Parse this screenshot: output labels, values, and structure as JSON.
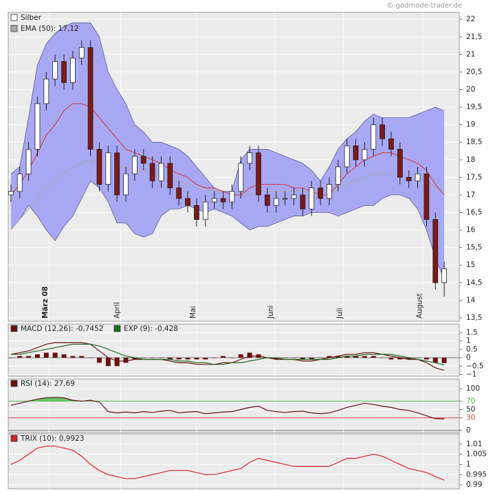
{
  "chart_data": [
    {
      "type": "candlestick",
      "watermark": "© godmode-trader.de",
      "grid": true,
      "xlim": [
        -0.3,
        50.7
      ],
      "xticks": [
        {
          "value": 4.3,
          "label": "März 08"
        },
        {
          "value": 12.4,
          "label": "April"
        },
        {
          "value": 21,
          "label": "Mai"
        },
        {
          "value": 29.8,
          "label": "Juni"
        },
        {
          "value": 37.6,
          "label": "Juli"
        },
        {
          "value": 46.6,
          "label": "August"
        }
      ],
      "ylim": [
        13.4,
        22.2
      ],
      "yticks": [
        22,
        {
          "value": 21.5,
          "label": "21,5"
        },
        21,
        {
          "value": 20.5,
          "label": "20,5"
        },
        20,
        {
          "value": 19.5,
          "label": "19,5"
        },
        19,
        {
          "value": 18.5,
          "label": "18,5"
        },
        18,
        {
          "value": 17.5,
          "label": "17,5"
        },
        17,
        {
          "value": 16.5,
          "label": "16,5"
        },
        16,
        {
          "value": 15.5,
          "label": "15,5"
        },
        15,
        {
          "value": 14.5,
          "label": "14,5"
        },
        14,
        {
          "value": 13.5,
          "label": "13,5"
        }
      ],
      "bands": {
        "color": "#a8a8f4",
        "line_color": "#5a5a90",
        "upper": [
          17.6,
          17.8,
          19.2,
          20.7,
          21.3,
          21.6,
          21.8,
          21.9,
          21.9,
          21.9,
          21.5,
          20.5,
          20.0,
          19.6,
          19.0,
          18.8,
          18.5,
          18.5,
          18.4,
          18.3,
          18.1,
          17.8,
          17.5,
          17.2,
          17.1,
          17.1,
          18.0,
          18.3,
          18.3,
          18.3,
          18.2,
          18.1,
          18.0,
          17.9,
          17.7,
          17.4,
          17.8,
          18.3,
          18.6,
          18.8,
          19.1,
          19.3,
          19.2,
          19.2,
          19.2,
          19.2,
          19.3,
          19.4,
          19.5,
          19.4
        ],
        "lower": [
          16.0,
          16.3,
          16.7,
          16.4,
          16.0,
          15.7,
          16.1,
          16.4,
          16.9,
          17.4,
          17.2,
          16.8,
          16.2,
          16.2,
          15.9,
          15.8,
          15.9,
          16.4,
          16.6,
          16.6,
          16.7,
          16.6,
          16.5,
          16.6,
          16.5,
          16.4,
          16.2,
          16.0,
          16.1,
          16.1,
          16.2,
          16.3,
          16.4,
          16.4,
          16.5,
          16.5,
          16.5,
          16.4,
          16.5,
          16.6,
          16.7,
          16.7,
          16.9,
          17.0,
          17.0,
          16.9,
          16.6,
          16.0,
          15.2,
          14.6
        ]
      },
      "series": [
        {
          "name": "Silber",
          "color": "#ffffff",
          "down_color": "#7a1a1a",
          "open": [
            17.0,
            17.1,
            17.6,
            18.3,
            19.6,
            20.3,
            20.8,
            20.2,
            20.9,
            21.2,
            18.3,
            17.3,
            18.2,
            17.0,
            17.6,
            18.1,
            17.9,
            17.4,
            17.9,
            17.2,
            16.9,
            16.7,
            16.3,
            16.8,
            16.9,
            16.8,
            17.1,
            17.9,
            18.2,
            17.0,
            16.7,
            16.9,
            16.9,
            17.0,
            16.6,
            17.2,
            16.9,
            17.3,
            17.8,
            18.4,
            18.0,
            18.3,
            19.0,
            18.6,
            18.3,
            17.5,
            17.4,
            17.6,
            16.3,
            14.5
          ],
          "high": [
            17.3,
            17.8,
            18.5,
            19.8,
            20.5,
            21.0,
            21.0,
            21.1,
            21.4,
            21.4,
            18.5,
            18.4,
            18.4,
            17.8,
            18.3,
            18.3,
            18.1,
            18.1,
            18.1,
            17.4,
            17.1,
            16.9,
            17.0,
            17.1,
            17.1,
            17.3,
            18.1,
            18.4,
            18.4,
            17.2,
            17.1,
            17.1,
            17.2,
            17.2,
            17.4,
            17.4,
            17.5,
            18.0,
            18.6,
            18.6,
            18.5,
            19.2,
            19.2,
            18.8,
            18.5,
            17.7,
            17.8,
            17.8,
            16.5,
            15.1
          ],
          "low": [
            16.8,
            16.9,
            17.4,
            18.1,
            19.4,
            20.1,
            20.0,
            20.0,
            20.7,
            18.1,
            17.1,
            17.1,
            16.8,
            16.8,
            17.4,
            17.7,
            17.2,
            17.2,
            17.0,
            16.7,
            16.5,
            16.1,
            16.1,
            16.6,
            16.6,
            16.6,
            16.9,
            17.7,
            16.8,
            16.5,
            16.5,
            16.7,
            16.7,
            16.4,
            16.4,
            16.7,
            16.7,
            17.1,
            17.6,
            17.8,
            17.8,
            18.1,
            18.4,
            18.1,
            17.3,
            17.2,
            17.2,
            16.1,
            14.3,
            14.1
          ],
          "close": [
            17.1,
            17.6,
            18.3,
            19.6,
            20.3,
            20.8,
            20.2,
            20.9,
            21.2,
            18.3,
            17.3,
            18.2,
            17.0,
            17.6,
            18.1,
            17.9,
            17.4,
            17.9,
            17.2,
            16.9,
            16.7,
            16.3,
            16.8,
            16.9,
            16.8,
            17.1,
            17.9,
            18.2,
            17.0,
            16.7,
            16.9,
            16.9,
            17.0,
            16.6,
            17.2,
            16.9,
            17.3,
            17.8,
            18.4,
            18.0,
            18.3,
            19.0,
            18.6,
            18.3,
            17.5,
            17.4,
            17.6,
            16.3,
            14.5,
            14.9
          ]
        },
        {
          "name": "EMA (50): 17,12",
          "color": "#aaaaaa",
          "values": [
            16.0,
            16.3,
            16.6,
            16.9,
            17.2,
            17.4,
            17.6,
            17.8,
            17.9,
            18.0,
            17.9,
            17.9,
            17.8,
            17.8,
            17.7,
            17.7,
            17.6,
            17.5,
            17.5,
            17.4,
            17.3,
            17.2,
            17.2,
            17.1,
            17.1,
            17.0,
            17.0,
            17.0,
            17.1,
            17.1,
            17.1,
            17.1,
            17.1,
            17.1,
            17.1,
            17.1,
            17.1,
            17.2,
            17.3,
            17.4,
            17.5,
            17.6,
            17.6,
            17.6,
            17.6,
            17.5,
            17.5,
            17.4,
            17.2,
            17.12
          ]
        },
        {
          "color": "#dd3333",
          "values": [
            17.0,
            17.3,
            17.7,
            18.2,
            18.7,
            19.0,
            19.4,
            19.6,
            19.6,
            19.5,
            19.2,
            18.9,
            18.6,
            18.3,
            18.2,
            18.1,
            18.0,
            17.9,
            17.7,
            17.6,
            17.5,
            17.3,
            17.2,
            17.2,
            17.1,
            17.0,
            17.0,
            17.2,
            17.3,
            17.3,
            17.3,
            17.3,
            17.2,
            17.2,
            17.1,
            17.0,
            17.0,
            17.3,
            17.6,
            17.8,
            18.0,
            18.1,
            18.2,
            18.2,
            18.1,
            18.0,
            17.9,
            17.7,
            17.3,
            17.0
          ]
        }
      ]
    },
    {
      "type": "line",
      "grid": true,
      "ylim": [
        -1.1,
        2.0
      ],
      "yticks": [
        1.5,
        1,
        0.5,
        0,
        {
          "value": -0.5,
          "label": "−0.5"
        },
        {
          "value": -1,
          "label": "−1"
        }
      ],
      "series": [
        {
          "name": "MACD (12,26): -0,7452",
          "color": "#6b1010",
          "values": [
            0.2,
            0.3,
            0.4,
            0.6,
            0.8,
            0.9,
            0.9,
            0.9,
            0.9,
            0.8,
            0.4,
            0.0,
            -0.2,
            -0.2,
            -0.1,
            -0.1,
            -0.1,
            -0.1,
            -0.2,
            -0.3,
            -0.3,
            -0.4,
            -0.4,
            -0.4,
            -0.3,
            -0.3,
            -0.1,
            0.1,
            0.1,
            0.0,
            -0.1,
            -0.1,
            -0.1,
            -0.2,
            -0.2,
            -0.1,
            0.0,
            0.1,
            0.2,
            0.2,
            0.3,
            0.3,
            0.2,
            0.1,
            0.0,
            -0.1,
            -0.1,
            -0.3,
            -0.6,
            -0.75
          ]
        },
        {
          "name": "EXP (9): -0,428",
          "color": "#1f6b1f",
          "values": [
            0.2,
            0.2,
            0.3,
            0.4,
            0.5,
            0.6,
            0.7,
            0.8,
            0.8,
            0.8,
            0.7,
            0.5,
            0.3,
            0.1,
            0.0,
            -0.1,
            -0.1,
            -0.1,
            -0.1,
            -0.2,
            -0.2,
            -0.3,
            -0.3,
            -0.4,
            -0.4,
            -0.3,
            -0.3,
            -0.2,
            -0.1,
            0.0,
            0.0,
            -0.1,
            -0.1,
            -0.1,
            -0.1,
            -0.1,
            -0.1,
            0.0,
            0.1,
            0.1,
            0.2,
            0.2,
            0.2,
            0.2,
            0.1,
            0.0,
            -0.1,
            -0.2,
            -0.3,
            -0.43
          ]
        },
        {
          "style": "bar",
          "color": "#6b1010",
          "values": [
            0.0,
            0.1,
            0.1,
            0.2,
            0.3,
            0.3,
            0.2,
            0.1,
            0.1,
            0.0,
            -0.3,
            -0.5,
            -0.5,
            -0.3,
            -0.1,
            0.0,
            0.0,
            0.0,
            -0.1,
            -0.1,
            -0.1,
            -0.1,
            -0.1,
            0.0,
            0.1,
            0.0,
            0.2,
            0.3,
            0.2,
            0.0,
            -0.1,
            0.0,
            0.0,
            -0.1,
            -0.1,
            0.0,
            0.1,
            0.1,
            0.1,
            0.1,
            0.1,
            0.1,
            0.0,
            -0.1,
            -0.1,
            -0.1,
            0.0,
            -0.1,
            -0.3,
            -0.32
          ]
        }
      ]
    },
    {
      "type": "line",
      "grid": true,
      "ylim": [
        -5,
        123
      ],
      "yticks": [
        100,
        70,
        50,
        30,
        0
      ],
      "ref_lines": [
        {
          "value": 70,
          "color": "#44bb44",
          "fill": "above"
        },
        {
          "value": 30,
          "color": "#dd4444",
          "fill": "below"
        }
      ],
      "series": [
        {
          "name": "RSI (14): 27,69",
          "color": "#6b1010",
          "values": [
            60,
            65,
            70,
            75,
            78,
            79,
            78,
            72,
            70,
            72,
            68,
            45,
            42,
            44,
            42,
            45,
            43,
            46,
            48,
            42,
            44,
            45,
            40,
            42,
            44,
            45,
            50,
            55,
            58,
            48,
            45,
            43,
            45,
            46,
            42,
            40,
            42,
            48,
            55,
            60,
            65,
            62,
            58,
            55,
            50,
            48,
            42,
            35,
            28,
            27.69
          ]
        }
      ]
    },
    {
      "type": "line",
      "grid": true,
      "ylim": [
        0.988,
        1.015
      ],
      "yticks": [
        1.01,
        1.005,
        1,
        0.995,
        0.99
      ],
      "series": [
        {
          "name": "TRIX (10): 0,9923",
          "color": "#dd2222",
          "values": [
            1.0,
            1.002,
            1.005,
            1.008,
            1.009,
            1.009,
            1.008,
            1.007,
            1.004,
            1.0,
            0.997,
            0.995,
            0.994,
            0.993,
            0.993,
            0.994,
            0.995,
            0.996,
            0.997,
            0.997,
            0.997,
            0.996,
            0.995,
            0.995,
            0.996,
            0.997,
            0.998,
            1.001,
            1.003,
            1.002,
            1.001,
            1.0,
            0.999,
            0.999,
            0.999,
            0.999,
            0.999,
            1.001,
            1.003,
            1.003,
            1.004,
            1.005,
            1.004,
            1.002,
            1.0,
            0.998,
            0.997,
            0.996,
            0.994,
            0.9923
          ]
        }
      ]
    }
  ]
}
